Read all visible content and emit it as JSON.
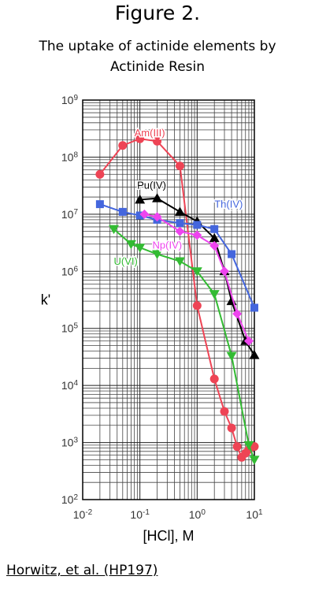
{
  "figure": {
    "title": "Figure 2.",
    "subtitle_line1": "The uptake of actinide elements by",
    "subtitle_line2": "Actinide Resin",
    "citation": "Horwitz, et al. (HP197)"
  },
  "chart_data": {
    "type": "line",
    "title": "The uptake of actinide elements by Actinide Resin",
    "xlabel": "[HCl], M",
    "ylabel": "k'",
    "x_scale": "log",
    "y_scale": "log",
    "xlim": [
      0.01,
      10
    ],
    "ylim": [
      100,
      1000000000
    ],
    "grid": true,
    "legend": "inline labels next to curves",
    "x_ticks": [
      {
        "v": 0.01,
        "base": "10",
        "exp": "-2"
      },
      {
        "v": 0.1,
        "base": "10",
        "exp": "-1"
      },
      {
        "v": 1,
        "base": "10",
        "exp": "0"
      },
      {
        "v": 10,
        "base": "10",
        "exp": "1"
      }
    ],
    "y_ticks": [
      {
        "v": 100,
        "base": "10",
        "exp": "2"
      },
      {
        "v": 1000,
        "base": "10",
        "exp": "3"
      },
      {
        "v": 10000,
        "base": "10",
        "exp": "4"
      },
      {
        "v": 100000,
        "base": "10",
        "exp": "5"
      },
      {
        "v": 1000000,
        "base": "10",
        "exp": "6"
      },
      {
        "v": 10000000,
        "base": "10",
        "exp": "7"
      },
      {
        "v": 100000000,
        "base": "10",
        "exp": "8"
      },
      {
        "v": 1000000000,
        "base": "10",
        "exp": "9"
      }
    ],
    "series": [
      {
        "name": "Am(III)",
        "color": "#ee4455",
        "marker": "circle",
        "label_at": [
          0.08,
          230000000
        ],
        "label_anchor": "start",
        "points": [
          [
            0.02,
            50000000
          ],
          [
            0.05,
            160000000
          ],
          [
            0.1,
            210000000
          ],
          [
            0.2,
            190000000
          ],
          [
            0.5,
            70000000
          ],
          [
            1,
            250000
          ],
          [
            2,
            13000
          ],
          [
            3,
            3500
          ],
          [
            4,
            1800
          ],
          [
            5,
            850
          ],
          [
            6,
            550
          ],
          [
            7,
            650
          ],
          [
            8,
            750
          ],
          [
            10,
            850
          ]
        ]
      },
      {
        "name": "Pu(IV)",
        "color": "#000000",
        "marker": "triangle-up",
        "label_at": [
          0.16,
          28000000
        ],
        "label_anchor": "middle",
        "points": [
          [
            0.1,
            18000000
          ],
          [
            0.2,
            19000000
          ],
          [
            0.5,
            11000000
          ],
          [
            1,
            7500000
          ],
          [
            2,
            3800000
          ],
          [
            3,
            1000000
          ],
          [
            4,
            300000
          ],
          [
            7,
            60000
          ],
          [
            10,
            34000
          ]
        ]
      },
      {
        "name": "Th(IV)",
        "color": "#4466dd",
        "marker": "square",
        "label_at": [
          2.0,
          13000000
        ],
        "label_anchor": "start",
        "points": [
          [
            0.02,
            15000000
          ],
          [
            0.05,
            11000000
          ],
          [
            0.1,
            9500000
          ],
          [
            0.2,
            8000000
          ],
          [
            0.5,
            7000000
          ],
          [
            1,
            6500000
          ],
          [
            2,
            5500000
          ],
          [
            4,
            2000000
          ],
          [
            10,
            230000
          ]
        ]
      },
      {
        "name": "Np(IV)",
        "color": "#ee44ee",
        "marker": "diamond",
        "label_at": [
          0.3,
          2500000
        ],
        "label_anchor": "middle",
        "points": [
          [
            0.12,
            10000000
          ],
          [
            0.2,
            9000000
          ],
          [
            0.5,
            5000000
          ],
          [
            1,
            4300000
          ],
          [
            2,
            2800000
          ],
          [
            3,
            1000000
          ],
          [
            5,
            180000
          ],
          [
            8,
            60000
          ]
        ]
      },
      {
        "name": "U(VI)",
        "color": "#33bb33",
        "marker": "triangle-down",
        "label_at": [
          0.035,
          1300000
        ],
        "label_anchor": "start",
        "points": [
          [
            0.035,
            5500000
          ],
          [
            0.07,
            3000000
          ],
          [
            0.1,
            2600000
          ],
          [
            0.2,
            2000000
          ],
          [
            0.5,
            1500000
          ],
          [
            1,
            1000000
          ],
          [
            2,
            400000
          ],
          [
            4,
            33000
          ],
          [
            8,
            900
          ],
          [
            10,
            500
          ]
        ]
      }
    ]
  }
}
